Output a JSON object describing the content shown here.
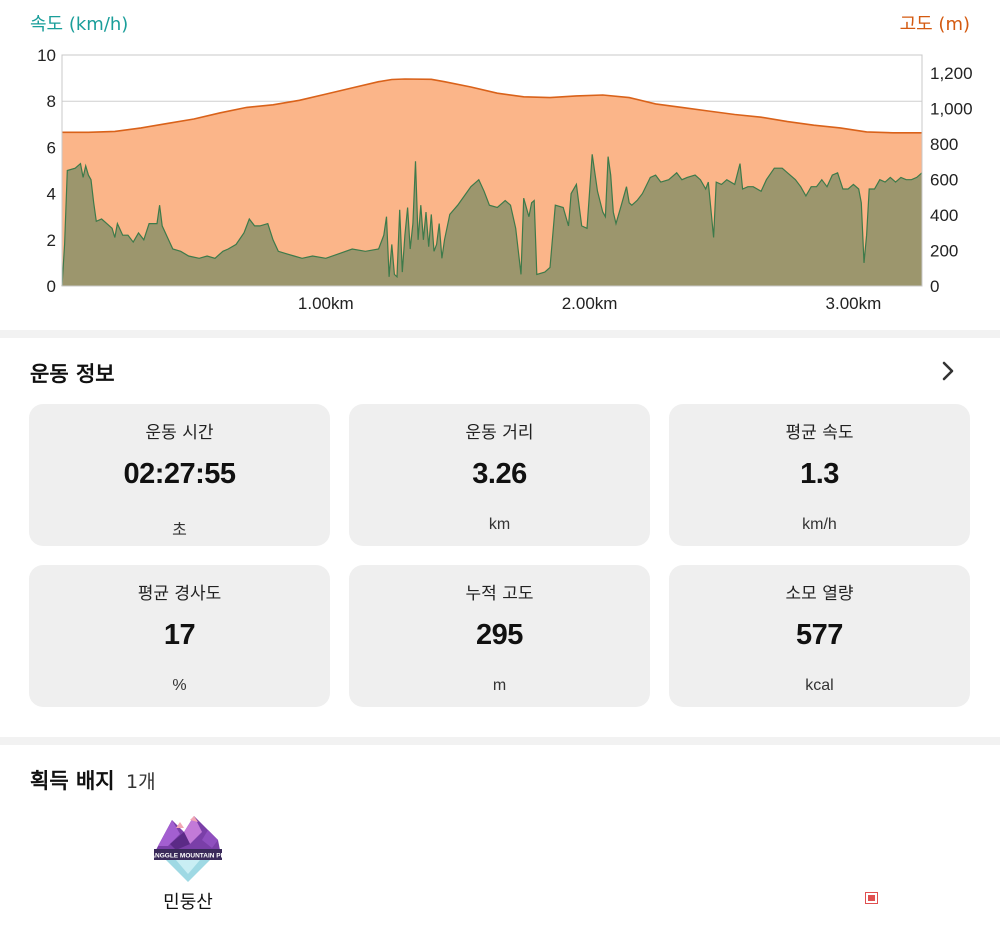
{
  "chart": {
    "speed_axis_label": "속도 (km/h)",
    "altitude_axis_label": "고도 (m)"
  },
  "chart_data": {
    "type": "area",
    "x_unit": "km",
    "xlim": [
      0,
      3.26
    ],
    "x_ticks": [
      1.0,
      2.0,
      3.0
    ],
    "x_tick_labels": [
      "1.00km",
      "2.00km",
      "3.00km"
    ],
    "y_left": {
      "label": "속도 (km/h)",
      "ylim": [
        0,
        10
      ],
      "ticks": [
        0,
        2,
        4,
        6,
        8,
        10
      ],
      "tick_labels": [
        "0",
        "2",
        "4",
        "6",
        "8",
        "10"
      ]
    },
    "y_right": {
      "label": "고도 (m)",
      "ylim": [
        0,
        1300
      ],
      "ticks": [
        0,
        200,
        400,
        600,
        800,
        1000,
        1200
      ],
      "tick_labels": [
        "0",
        "200",
        "400",
        "600",
        "800",
        "1,000",
        "1,200"
      ]
    },
    "grid": true,
    "series": [
      {
        "name": "고도 (m)",
        "axis": "right",
        "color": "#d9621a",
        "fill": "#fbb589",
        "points": [
          [
            0.0,
            865
          ],
          [
            0.1,
            865
          ],
          [
            0.2,
            870
          ],
          [
            0.3,
            890
          ],
          [
            0.4,
            915
          ],
          [
            0.5,
            940
          ],
          [
            0.6,
            975
          ],
          [
            0.7,
            1005
          ],
          [
            0.8,
            1020
          ],
          [
            0.9,
            1045
          ],
          [
            1.0,
            1080
          ],
          [
            1.1,
            1115
          ],
          [
            1.2,
            1150
          ],
          [
            1.25,
            1162
          ],
          [
            1.3,
            1165
          ],
          [
            1.4,
            1163
          ],
          [
            1.45,
            1150
          ],
          [
            1.55,
            1120
          ],
          [
            1.65,
            1085
          ],
          [
            1.75,
            1065
          ],
          [
            1.85,
            1060
          ],
          [
            1.95,
            1070
          ],
          [
            2.05,
            1075
          ],
          [
            2.15,
            1060
          ],
          [
            2.25,
            1025
          ],
          [
            2.35,
            1005
          ],
          [
            2.45,
            985
          ],
          [
            2.55,
            965
          ],
          [
            2.65,
            950
          ],
          [
            2.75,
            925
          ],
          [
            2.85,
            905
          ],
          [
            2.95,
            890
          ],
          [
            3.05,
            867
          ],
          [
            3.15,
            862
          ],
          [
            3.26,
            862
          ]
        ]
      },
      {
        "name": "속도 (km/h)",
        "axis": "left",
        "color": "#3d7a4a",
        "fill": "#94946a",
        "points": [
          [
            0.0,
            0.0
          ],
          [
            0.01,
            1.8
          ],
          [
            0.02,
            5.0
          ],
          [
            0.05,
            5.1
          ],
          [
            0.07,
            5.3
          ],
          [
            0.08,
            4.7
          ],
          [
            0.09,
            5.2
          ],
          [
            0.1,
            4.8
          ],
          [
            0.11,
            4.6
          ],
          [
            0.12,
            3.6
          ],
          [
            0.13,
            2.8
          ],
          [
            0.15,
            2.9
          ],
          [
            0.17,
            2.7
          ],
          [
            0.19,
            2.5
          ],
          [
            0.2,
            2.1
          ],
          [
            0.21,
            2.7
          ],
          [
            0.23,
            2.2
          ],
          [
            0.25,
            2.2
          ],
          [
            0.27,
            1.9
          ],
          [
            0.29,
            2.3
          ],
          [
            0.31,
            2.0
          ],
          [
            0.33,
            2.7
          ],
          [
            0.36,
            2.7
          ],
          [
            0.37,
            3.5
          ],
          [
            0.38,
            2.6
          ],
          [
            0.4,
            2.1
          ],
          [
            0.42,
            1.6
          ],
          [
            0.45,
            1.5
          ],
          [
            0.48,
            1.3
          ],
          [
            0.52,
            1.2
          ],
          [
            0.55,
            1.3
          ],
          [
            0.58,
            1.2
          ],
          [
            0.61,
            1.5
          ],
          [
            0.63,
            1.6
          ],
          [
            0.66,
            1.8
          ],
          [
            0.69,
            2.3
          ],
          [
            0.71,
            2.9
          ],
          [
            0.73,
            2.6
          ],
          [
            0.75,
            2.6
          ],
          [
            0.78,
            2.7
          ],
          [
            0.8,
            2.0
          ],
          [
            0.82,
            1.5
          ],
          [
            0.85,
            1.4
          ],
          [
            0.88,
            1.3
          ],
          [
            0.91,
            1.2
          ],
          [
            0.95,
            1.3
          ],
          [
            1.0,
            1.2
          ],
          [
            1.05,
            1.4
          ],
          [
            1.1,
            1.6
          ],
          [
            1.15,
            1.5
          ],
          [
            1.2,
            1.6
          ],
          [
            1.22,
            2.2
          ],
          [
            1.23,
            3.0
          ],
          [
            1.24,
            0.4
          ],
          [
            1.25,
            1.8
          ],
          [
            1.26,
            0.5
          ],
          [
            1.27,
            0.4
          ],
          [
            1.28,
            3.3
          ],
          [
            1.29,
            0.6
          ],
          [
            1.3,
            2.2
          ],
          [
            1.31,
            3.4
          ],
          [
            1.32,
            1.6
          ],
          [
            1.33,
            2.7
          ],
          [
            1.34,
            5.4
          ],
          [
            1.35,
            2.0
          ],
          [
            1.36,
            3.5
          ],
          [
            1.37,
            2.0
          ],
          [
            1.38,
            3.2
          ],
          [
            1.39,
            1.7
          ],
          [
            1.4,
            3.1
          ],
          [
            1.41,
            1.5
          ],
          [
            1.42,
            1.8
          ],
          [
            1.43,
            2.7
          ],
          [
            1.44,
            1.2
          ],
          [
            1.45,
            2.0
          ],
          [
            1.47,
            3.1
          ],
          [
            1.5,
            3.5
          ],
          [
            1.55,
            4.3
          ],
          [
            1.58,
            4.6
          ],
          [
            1.6,
            4.1
          ],
          [
            1.62,
            3.5
          ],
          [
            1.65,
            3.4
          ],
          [
            1.68,
            3.7
          ],
          [
            1.7,
            3.5
          ],
          [
            1.72,
            2.5
          ],
          [
            1.74,
            0.5
          ],
          [
            1.75,
            3.8
          ],
          [
            1.77,
            3.0
          ],
          [
            1.78,
            3.6
          ],
          [
            1.79,
            3.7
          ],
          [
            1.8,
            0.5
          ],
          [
            1.83,
            0.6
          ],
          [
            1.85,
            0.8
          ],
          [
            1.87,
            3.5
          ],
          [
            1.9,
            3.4
          ],
          [
            1.92,
            2.6
          ],
          [
            1.93,
            4.0
          ],
          [
            1.95,
            4.4
          ],
          [
            1.97,
            2.6
          ],
          [
            1.99,
            2.5
          ],
          [
            2.01,
            5.7
          ],
          [
            2.03,
            4.1
          ],
          [
            2.05,
            3.2
          ],
          [
            2.06,
            3.0
          ],
          [
            2.07,
            5.6
          ],
          [
            2.08,
            4.8
          ],
          [
            2.09,
            3.2
          ],
          [
            2.1,
            2.7
          ],
          [
            2.12,
            3.5
          ],
          [
            2.14,
            4.3
          ],
          [
            2.15,
            3.6
          ],
          [
            2.16,
            3.5
          ],
          [
            2.18,
            3.7
          ],
          [
            2.2,
            4.0
          ],
          [
            2.23,
            4.7
          ],
          [
            2.25,
            4.8
          ],
          [
            2.27,
            4.5
          ],
          [
            2.3,
            4.6
          ],
          [
            2.33,
            4.9
          ],
          [
            2.35,
            4.6
          ],
          [
            2.37,
            4.7
          ],
          [
            2.4,
            4.8
          ],
          [
            2.42,
            4.6
          ],
          [
            2.44,
            4.2
          ],
          [
            2.45,
            4.5
          ],
          [
            2.47,
            2.1
          ],
          [
            2.48,
            4.5
          ],
          [
            2.5,
            4.4
          ],
          [
            2.52,
            4.6
          ],
          [
            2.55,
            4.4
          ],
          [
            2.57,
            5.3
          ],
          [
            2.58,
            4.2
          ],
          [
            2.6,
            4.3
          ],
          [
            2.62,
            4.3
          ],
          [
            2.65,
            4.1
          ],
          [
            2.67,
            4.6
          ],
          [
            2.7,
            5.1
          ],
          [
            2.73,
            5.1
          ],
          [
            2.75,
            4.9
          ],
          [
            2.78,
            4.6
          ],
          [
            2.8,
            4.3
          ],
          [
            2.82,
            3.9
          ],
          [
            2.84,
            4.3
          ],
          [
            2.86,
            4.3
          ],
          [
            2.88,
            4.6
          ],
          [
            2.9,
            4.3
          ],
          [
            2.92,
            4.8
          ],
          [
            2.94,
            4.9
          ],
          [
            2.96,
            4.2
          ],
          [
            2.98,
            4.2
          ],
          [
            3.0,
            4.4
          ],
          [
            3.02,
            4.2
          ],
          [
            3.03,
            3.6
          ],
          [
            3.04,
            1.0
          ],
          [
            3.05,
            2.2
          ],
          [
            3.06,
            4.2
          ],
          [
            3.08,
            4.2
          ],
          [
            3.1,
            4.6
          ],
          [
            3.12,
            4.5
          ],
          [
            3.14,
            4.7
          ],
          [
            3.16,
            4.5
          ],
          [
            3.18,
            4.7
          ],
          [
            3.2,
            4.6
          ],
          [
            3.22,
            4.6
          ],
          [
            3.24,
            4.7
          ],
          [
            3.26,
            4.9
          ]
        ]
      }
    ]
  },
  "exercise_info": {
    "title": "운동 정보",
    "stats": [
      {
        "label": "운동 시간",
        "value": "02:27:55",
        "unit": "초"
      },
      {
        "label": "운동 거리",
        "value": "3.26",
        "unit": "km"
      },
      {
        "label": "평균 속도",
        "value": "1.3",
        "unit": "km/h"
      },
      {
        "label": "평균 경사도",
        "value": "17",
        "unit": "%"
      },
      {
        "label": "누적 고도",
        "value": "295",
        "unit": "m"
      },
      {
        "label": "소모 열량",
        "value": "577",
        "unit": "kcal"
      }
    ]
  },
  "badges": {
    "title": "획득 배지",
    "count": "1개",
    "items": [
      {
        "name": "민둥산",
        "badge_text": "TRANGGLE MOUNTAIN PEAK"
      }
    ]
  },
  "colors": {
    "speed_accent": "#1a9e9a",
    "altitude_accent": "#d45a10",
    "card_bg": "#efefef"
  }
}
